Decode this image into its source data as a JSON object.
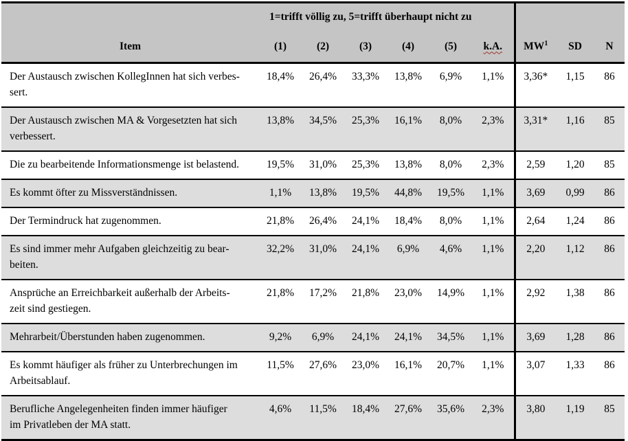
{
  "colors": {
    "header_bg": "#c5c5c5",
    "row_alt_bg": "#dddddd",
    "border": "#000000",
    "spellcheck_wavy_underline": "#9e3228"
  },
  "table": {
    "scale_note": "1=trifft völlig zu, 5=trifft überhaupt nicht zu",
    "columns": {
      "item": "Item",
      "r1": "(1)",
      "r2": "(2)",
      "r3": "(3)",
      "r4": "(4)",
      "r5": "(5)",
      "ka": "k.A.",
      "mw": "MW",
      "mw_sup": "1",
      "sd": "SD",
      "n": "N"
    },
    "rows": [
      {
        "item": "Der Austausch zwischen KollegInnen hat sich verbes-\nsert.",
        "p1": "18,4%",
        "p2": "26,4%",
        "p3": "33,3%",
        "p4": "13,8%",
        "p5": "6,9%",
        "ka": "1,1%",
        "mw": "3,36*",
        "sd": "1,15",
        "n": "86"
      },
      {
        "item": "Der Austausch zwischen MA & Vorgesetzten hat sich\nverbessert.",
        "p1": "13,8%",
        "p2": "34,5%",
        "p3": "25,3%",
        "p4": "16,1%",
        "p5": "8,0%",
        "ka": "2,3%",
        "mw": "3,31*",
        "sd": "1,16",
        "n": "85"
      },
      {
        "item": "Die zu bearbeitende Informationsmenge ist belastend.",
        "p1": "19,5%",
        "p2": "31,0%",
        "p3": "25,3%",
        "p4": "13,8%",
        "p5": "8,0%",
        "ka": "2,3%",
        "mw": "2,59",
        "sd": "1,20",
        "n": "85"
      },
      {
        "item": "Es kommt öfter zu Missverständnissen.",
        "p1": "1,1%",
        "p2": "13,8%",
        "p3": "19,5%",
        "p4": "44,8%",
        "p5": "19,5%",
        "ka": "1,1%",
        "mw": "3,69",
        "sd": "0,99",
        "n": "86"
      },
      {
        "item": "Der Termindruck hat zugenommen.",
        "p1": "21,8%",
        "p2": "26,4%",
        "p3": "24,1%",
        "p4": "18,4%",
        "p5": "8,0%",
        "ka": "1,1%",
        "mw": "2,64",
        "sd": "1,24",
        "n": "86"
      },
      {
        "item": "Es sind immer mehr Aufgaben gleichzeitig zu bear-\nbeiten.",
        "p1": "32,2%",
        "p2": "31,0%",
        "p3": "24,1%",
        "p4": "6,9%",
        "p5": "4,6%",
        "ka": "1,1%",
        "mw": "2,20",
        "sd": "1,12",
        "n": "86"
      },
      {
        "item": "Ansprüche an Erreichbarkeit außerhalb der Arbeits-\nzeit sind gestiegen.",
        "p1": "21,8%",
        "p2": "17,2%",
        "p3": "21,8%",
        "p4": "23,0%",
        "p5": "14,9%",
        "ka": "1,1%",
        "mw": "2,92",
        "sd": "1,38",
        "n": "86"
      },
      {
        "item": "Mehrarbeit/Überstunden haben zugenommen.",
        "p1": "9,2%",
        "p2": "6,9%",
        "p3": "24,1%",
        "p4": "24,1%",
        "p5": "34,5%",
        "ka": "1,1%",
        "mw": "3,69",
        "sd": "1,28",
        "n": "86"
      },
      {
        "item": "Es kommt häufiger als früher zu Unterbrechungen im\nArbeitsablauf.",
        "p1": "11,5%",
        "p2": "27,6%",
        "p3": "23,0%",
        "p4": "16,1%",
        "p5": "20,7%",
        "ka": "1,1%",
        "mw": "3,07",
        "sd": "1,33",
        "n": "86"
      },
      {
        "item": "Berufliche Angelegenheiten finden immer häufiger\nim Privatleben der MA statt.",
        "p1": "4,6%",
        "p2": "11,5%",
        "p3": "18,4%",
        "p4": "27,6%",
        "p5": "35,6%",
        "ka": "2,3%",
        "mw": "3,80",
        "sd": "1,19",
        "n": "85"
      }
    ]
  }
}
